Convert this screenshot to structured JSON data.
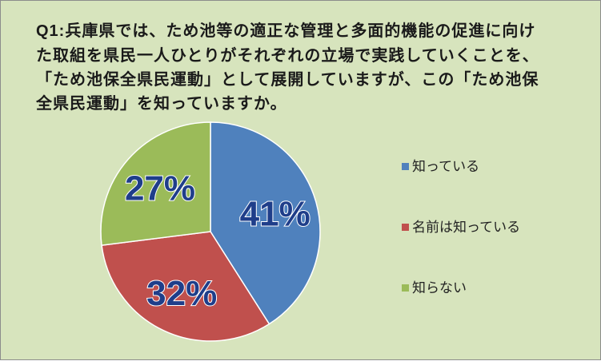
{
  "question": {
    "number": "Q1:",
    "text": "兵庫県では、ため池等の適正な管理と多面的機能の促進に向けた取組を県民一人ひとりがそれぞれの立場で実践していくことを、「ため池保全県民運動」として展開していますが、この「ため池保全県民運動」を知っていますか。"
  },
  "chart_data": {
    "type": "pie",
    "title": "",
    "slices": [
      {
        "label": "知っている",
        "value": 41,
        "display": "41%",
        "color": "#4f81bd"
      },
      {
        "label": "名前は知っている",
        "value": 32,
        "display": "32%",
        "color": "#c0504d"
      },
      {
        "label": "知らない",
        "value": 27,
        "display": "27%",
        "color": "#9bbb59"
      }
    ],
    "start_angle_deg": 0,
    "direction": "clockwise",
    "legend_position": "right"
  },
  "colors": {
    "background": "#d7e4bd",
    "border": "#8c8c8c",
    "label_fill": "#1f3e8a"
  }
}
